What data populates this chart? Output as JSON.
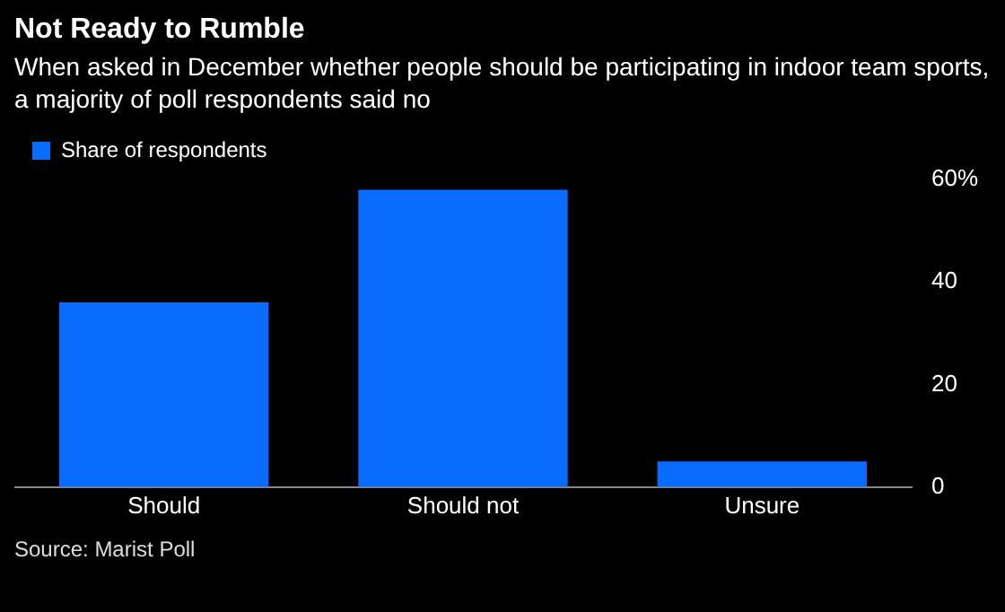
{
  "chart_data": {
    "type": "bar",
    "title": "Not Ready to Rumble",
    "subtitle": "When asked in December whether people should be participating in indoor team sports, a majority of poll respondents said no",
    "categories": [
      "Should",
      "Should not",
      "Unsure"
    ],
    "series": [
      {
        "name": "Share of respondents",
        "color": "#0a6cff",
        "values": [
          36,
          58,
          5
        ]
      }
    ],
    "ylim": [
      0,
      60
    ],
    "yticks": [
      0,
      20,
      40,
      {
        "value": 60,
        "label": "60%"
      }
    ],
    "grid": false,
    "legend": "top left",
    "annotations": [
      "Source: Marist Poll"
    ]
  }
}
